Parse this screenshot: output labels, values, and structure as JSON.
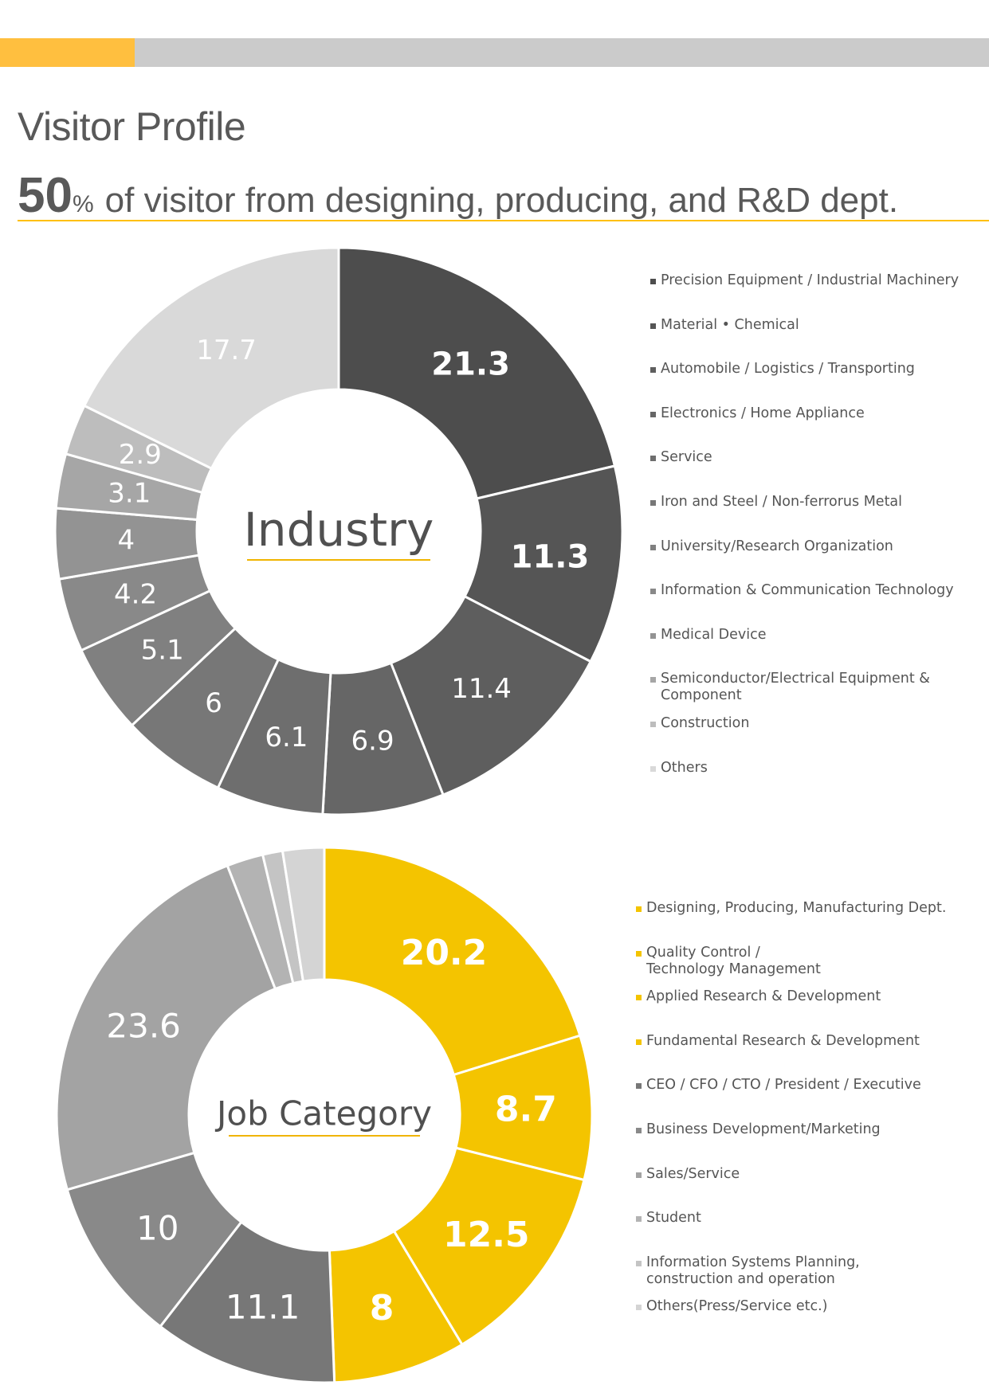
{
  "header": {
    "title": "Visitor Profile",
    "headline_number": "50",
    "headline_unit": "%",
    "headline_text": "of visitor from designing, producing, and R&D dept.",
    "accent_color": "#ffbf3f",
    "bar_color": "#cbcbcb"
  },
  "chart_data": [
    {
      "type": "pie",
      "donut": true,
      "title": "Industry",
      "legend_position": "right",
      "categories": [
        "Precision Equipment / Industrial Machinery",
        "Material • Chemical",
        "Automobile / Logistics / Transporting",
        "Electronics / Home Appliance",
        "Service",
        "Iron and Steel / Non-ferrorus Metal",
        "University/Research Organization",
        "Information & Communication Technology",
        "Medical Device",
        "Semiconductor/Electrical Equipment & Component",
        "Construction",
        "Others"
      ],
      "values": [
        21.3,
        11.3,
        11.4,
        6.9,
        6.1,
        6,
        5.1,
        4.2,
        4,
        3.1,
        2.9,
        17.7
      ],
      "labels": [
        "21.3",
        "11.3",
        "11.4",
        "6.9",
        "6.1",
        "6",
        "5.1",
        "4.2",
        "4",
        "3.1",
        "2.9",
        "17.7"
      ],
      "colors": [
        "#4d4d4d",
        "#555555",
        "#5e5e5e",
        "#666666",
        "#6e6e6e",
        "#777777",
        "#808080",
        "#898989",
        "#939393",
        "#a6a6a6",
        "#bdbdbd",
        "#d9d9d9"
      ]
    },
    {
      "type": "pie",
      "donut": true,
      "title": "Job Category",
      "legend_position": "right",
      "categories": [
        "Designing, Producing, Manufacturing Dept.",
        "Quality Control / Technology Management",
        "Applied Research & Development",
        "Fundamental Research & Development",
        "CEO / CFO / CTO / President / Executive",
        "Business Development/Marketing",
        "Sales/Service",
        "Student",
        "Information Systems Planning, construction and operation",
        "Others(Press/Service etc.)"
      ],
      "values": [
        20.2,
        8.7,
        12.5,
        8,
        11.1,
        10,
        23.6,
        2.2,
        1.2,
        2.5
      ],
      "labels": [
        "20.2",
        "8.7",
        "12.5",
        "8",
        "11.1",
        "10",
        "23.6",
        "",
        "",
        ""
      ],
      "colors": [
        "#f4c400",
        "#f4c400",
        "#f4c400",
        "#f4c400",
        "#777777",
        "#898989",
        "#a3a3a3",
        "#b3b3b3",
        "#c4c4c4",
        "#d4d4d4"
      ]
    }
  ]
}
